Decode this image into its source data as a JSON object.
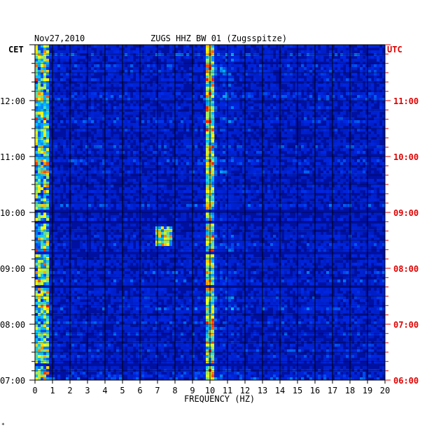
{
  "chart_data": {
    "type": "heatmap",
    "title": "ZUGS HHZ BW 01 (Zugsspitze)",
    "date": "Nov27,2010",
    "xlabel": "FREQUENCY (HZ)",
    "xlim": [
      0,
      20
    ],
    "x_ticks": [
      "0",
      "1",
      "2",
      "3",
      "4",
      "5",
      "6",
      "7",
      "8",
      "9",
      "10",
      "11",
      "12",
      "13",
      "14",
      "15",
      "16",
      "17",
      "18",
      "19",
      "20"
    ],
    "left_axis_label": "CET",
    "right_axis_label": "UTC",
    "time_range_cet": [
      "07:00",
      "13:00"
    ],
    "time_range_utc": [
      "06:00",
      "12:00"
    ],
    "cet_ticks": [
      "07:00",
      "08:00",
      "09:00",
      "10:00",
      "11:00",
      "12:00"
    ],
    "utc_ticks": [
      "06:00",
      "07:00",
      "08:00",
      "09:00",
      "10:00",
      "11:00"
    ],
    "colors": {
      "background": "#0010a0",
      "low": "#0000c8",
      "mid": "#00c8ff",
      "high": "#ffff00",
      "peak": "#ff2000",
      "utc_text": "#e00000",
      "grid": "#000000"
    },
    "dominant_features": [
      {
        "frequency_hz": 10.0,
        "description": "persistent narrow band at 9.9–10.1 Hz across entire record"
      },
      {
        "frequency_hz": 0.4,
        "description": "low-frequency energy band 0–0.7 Hz"
      },
      {
        "frequency_hz": 7.2,
        "description": "transient burst around 09:40 CET"
      }
    ],
    "corner_mark": "*"
  }
}
